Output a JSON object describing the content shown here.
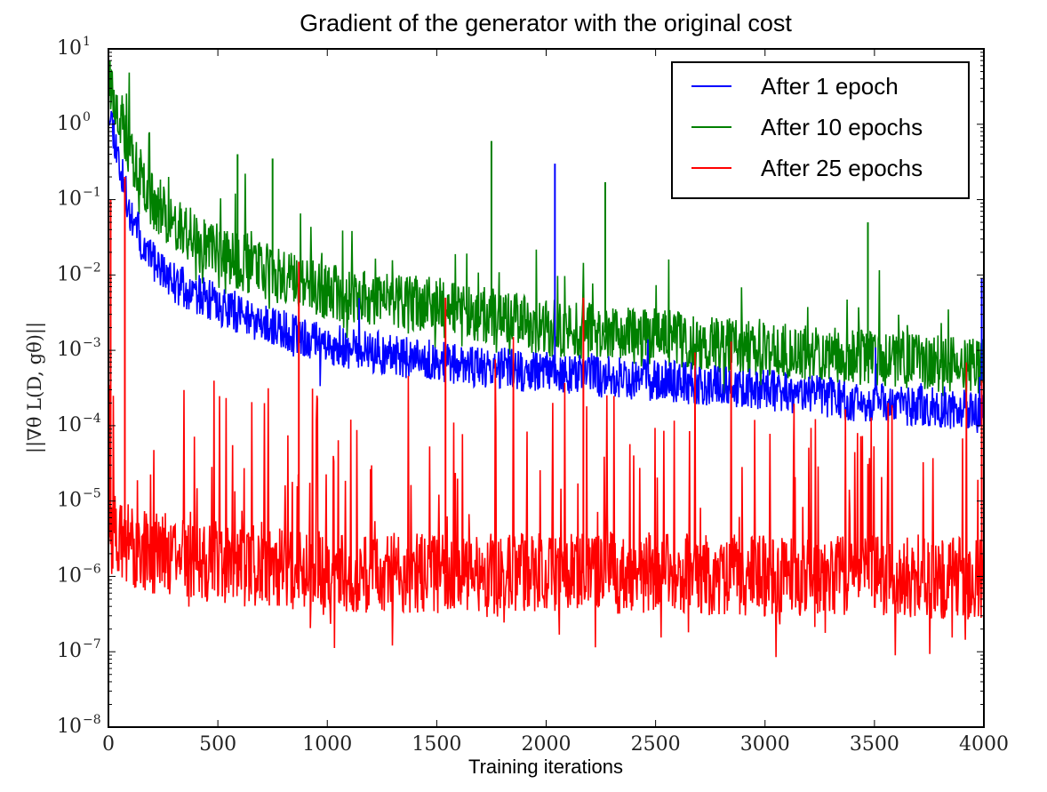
{
  "chart_data": {
    "type": "line",
    "title": "Gradient of the generator with the original cost",
    "xlabel": "Training iterations",
    "ylabel": "||∇θ L(D, gθ)||",
    "yscale": "log",
    "xlim": [
      0,
      4000
    ],
    "ylim": [
      1e-08,
      10
    ],
    "x_ticks": [
      0,
      500,
      1000,
      1500,
      2000,
      2500,
      3000,
      3500,
      4000
    ],
    "x_tick_labels": [
      "0",
      "500",
      "1000",
      "1500",
      "2000",
      "2500",
      "3000",
      "3500",
      "4000"
    ],
    "y_ticks": [
      1e-08,
      1e-07,
      1e-06,
      1e-05,
      0.0001,
      0.001,
      0.01,
      0.1,
      1,
      10
    ],
    "y_tick_labels": [
      {
        "base": "10",
        "exp": "−8"
      },
      {
        "base": "10",
        "exp": "−7"
      },
      {
        "base": "10",
        "exp": "−6"
      },
      {
        "base": "10",
        "exp": "−5"
      },
      {
        "base": "10",
        "exp": "−4"
      },
      {
        "base": "10",
        "exp": "−3"
      },
      {
        "base": "10",
        "exp": "−2"
      },
      {
        "base": "10",
        "exp": "−1"
      },
      {
        "base": "10",
        "exp": "0"
      },
      {
        "base": "10",
        "exp": "1"
      }
    ],
    "grid": false,
    "legend_position": "upper right",
    "x": [
      0,
      50,
      100,
      200,
      300,
      500,
      750,
      1000,
      1500,
      2000,
      2500,
      3000,
      3500,
      4000
    ],
    "series": [
      {
        "name": "After 1 epoch",
        "color": "#0000ff",
        "values": [
          2.0,
          0.3,
          0.06,
          0.015,
          0.008,
          0.004,
          0.002,
          0.0012,
          0.0007,
          0.0005,
          0.0004,
          0.0003,
          0.0002,
          0.00015
        ],
        "spikes": [
          {
            "x": 2040,
            "y": 0.3
          },
          {
            "x": 3990,
            "y": 0.009
          }
        ]
      },
      {
        "name": "After 10 epochs",
        "color": "#008000",
        "values": [
          4.0,
          1.5,
          0.4,
          0.1,
          0.05,
          0.02,
          0.01,
          0.006,
          0.004,
          0.002,
          0.0015,
          0.001,
          0.0008,
          0.0006
        ],
        "spikes": [
          {
            "x": 590,
            "y": 0.4
          },
          {
            "x": 750,
            "y": 0.35
          },
          {
            "x": 1750,
            "y": 0.6
          },
          {
            "x": 2270,
            "y": 0.17
          },
          {
            "x": 3470,
            "y": 0.05
          }
        ]
      },
      {
        "name": "After 25 epochs",
        "color": "#ff0000",
        "values": [
          3e-06,
          3e-06,
          2.5e-06,
          2e-06,
          2e-06,
          1.5e-06,
          1.3e-06,
          1.2e-06,
          1.1e-06,
          1.1e-06,
          1.1e-06,
          1e-06,
          1e-06,
          9e-07
        ],
        "spikes": [
          {
            "x": 10,
            "y": 0.1
          },
          {
            "x": 75,
            "y": 0.2
          },
          {
            "x": 870,
            "y": 0.015
          },
          {
            "x": 1540,
            "y": 0.005
          },
          {
            "x": 2170,
            "y": 0.005
          },
          {
            "x": 3990,
            "y": 0.0004
          }
        ],
        "min_value": 8e-08
      }
    ]
  },
  "legend": {
    "items": [
      {
        "label": "After 1 epoch",
        "color": "#0000ff"
      },
      {
        "label": "After 10 epochs",
        "color": "#008000"
      },
      {
        "label": "After 25 epochs",
        "color": "#ff0000"
      }
    ]
  }
}
